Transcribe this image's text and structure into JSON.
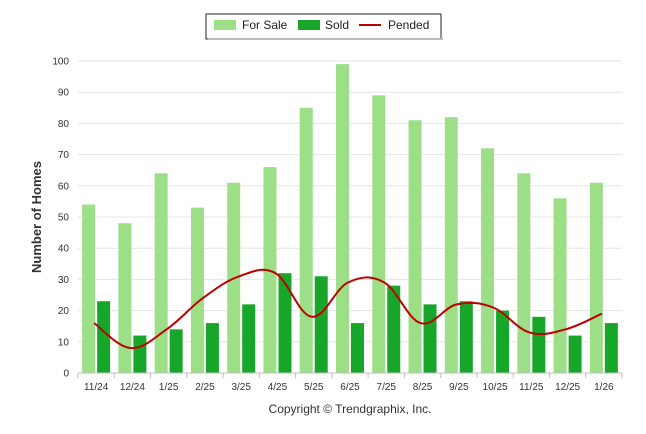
{
  "chart_data": {
    "type": "bar",
    "categories": [
      "11/24",
      "12/24",
      "1/25",
      "2/25",
      "3/25",
      "4/25",
      "5/25",
      "6/25",
      "7/25",
      "8/25",
      "9/25",
      "10/25",
      "11/25",
      "12/25",
      "1/26"
    ],
    "series": [
      {
        "name": "For Sale",
        "kind": "bar",
        "color": "#9ddf86",
        "values": [
          54,
          48,
          64,
          53,
          61,
          66,
          85,
          99,
          89,
          81,
          82,
          72,
          64,
          56,
          61
        ]
      },
      {
        "name": "Sold",
        "kind": "bar",
        "color": "#18a62a",
        "values": [
          23,
          12,
          14,
          16,
          22,
          32,
          31,
          16,
          28,
          22,
          23,
          20,
          18,
          12,
          16
        ]
      },
      {
        "name": "Pended",
        "kind": "line",
        "color": "#c00000",
        "values": [
          16,
          8,
          14,
          24,
          31,
          32,
          18,
          29,
          29,
          16,
          22,
          21,
          13,
          14,
          19
        ]
      }
    ],
    "ylabel": "Number of Homes",
    "xlabel": "",
    "ylim": [
      0,
      100
    ],
    "yticks": [
      0,
      10,
      20,
      30,
      40,
      50,
      60,
      70,
      80,
      90,
      100
    ],
    "grid": true,
    "legend_position": "top-center"
  },
  "credit": "Copyright © Trendgraphix, Inc."
}
